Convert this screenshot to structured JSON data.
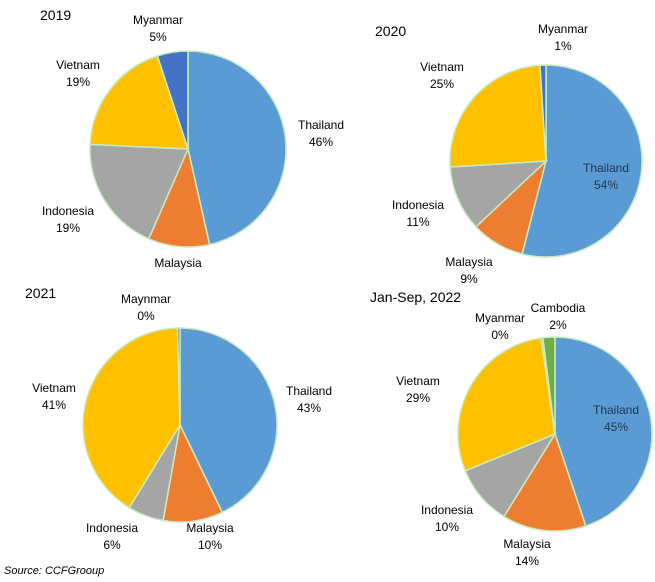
{
  "source": "Source: CCFGrooup",
  "colors": {
    "Thailand": "#5b9bd5",
    "Malaysia": "#ed7d31",
    "Indonesia": "#a5a5a5",
    "Vietnam": "#ffc000",
    "Myanmar": "#4472c4",
    "Maynmar": "#4472c4",
    "Cambodia": "#70ad47",
    "border": "#c8ecc0"
  },
  "chart_data": [
    {
      "type": "pie",
      "title": "2019",
      "slices": [
        {
          "label": "Thailand",
          "value": 46,
          "text": "46%"
        },
        {
          "label": "Malaysia",
          "value": 10,
          "text": ""
        },
        {
          "label": "Indonesia",
          "value": 19,
          "text": "19%"
        },
        {
          "label": "Vietnam",
          "value": 19,
          "text": "19%"
        },
        {
          "label": "Myanmar",
          "value": 5,
          "text": "5%"
        }
      ]
    },
    {
      "type": "pie",
      "title": "2020",
      "slices": [
        {
          "label": "Thailand",
          "value": 54,
          "text": "54%"
        },
        {
          "label": "Malaysia",
          "value": 9,
          "text": "9%"
        },
        {
          "label": "Indonesia",
          "value": 11,
          "text": "11%"
        },
        {
          "label": "Vietnam",
          "value": 25,
          "text": "25%"
        },
        {
          "label": "Myanmar",
          "value": 1,
          "text": "1%"
        }
      ]
    },
    {
      "type": "pie",
      "title": "2021",
      "slices": [
        {
          "label": "Thailand",
          "value": 43,
          "text": "43%"
        },
        {
          "label": "Malaysia",
          "value": 10,
          "text": "10%"
        },
        {
          "label": "Indonesia",
          "value": 6,
          "text": "6%"
        },
        {
          "label": "Vietnam",
          "value": 41,
          "text": "41%"
        },
        {
          "label": "Maynmar",
          "value": 0.4,
          "text": "0%"
        }
      ]
    },
    {
      "type": "pie",
      "title": "Jan-Sep, 2022",
      "slices": [
        {
          "label": "Thailand",
          "value": 45,
          "text": "45%"
        },
        {
          "label": "Malaysia",
          "value": 14,
          "text": "14%"
        },
        {
          "label": "Indonesia",
          "value": 10,
          "text": "10%"
        },
        {
          "label": "Vietnam",
          "value": 29,
          "text": "29%"
        },
        {
          "label": "Myanmar",
          "value": 0.3,
          "text": "0%"
        },
        {
          "label": "Cambodia",
          "value": 2,
          "text": "2%"
        }
      ]
    }
  ]
}
